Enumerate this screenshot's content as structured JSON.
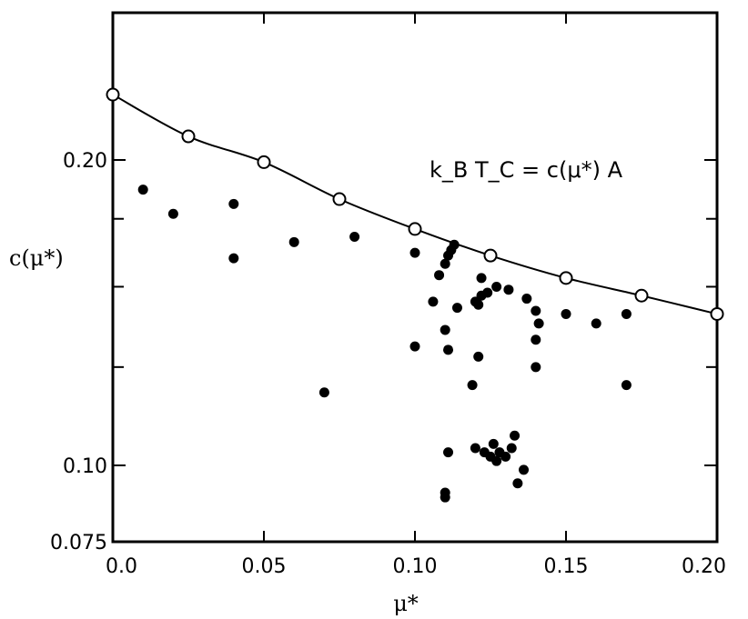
{
  "chart_data": {
    "type": "scatter",
    "title": "",
    "xlabel": "μ*",
    "ylabel": "c(μ*)",
    "xlim": [
      0.0,
      0.2
    ],
    "ylim": [
      0.075,
      0.23
    ],
    "y_scale": "log",
    "grid": false,
    "legend": "none",
    "annotation": "k_B T_C = c(μ*) A",
    "x_ticks": [
      {
        "value": 0.0,
        "label": "0.0"
      },
      {
        "value": 0.05,
        "label": "0.05"
      },
      {
        "value": 0.1,
        "label": "0.10"
      },
      {
        "value": 0.15,
        "label": "0.15"
      },
      {
        "value": 0.2,
        "label": "0.20"
      }
    ],
    "y_ticks": [
      {
        "value": 0.075,
        "label": "0.075"
      },
      {
        "value": 0.1,
        "label": "0.10"
      },
      {
        "value": 0.2,
        "label": "0.20"
      }
    ],
    "y_minor_ticks": [
      0.125,
      0.15,
      0.175
    ],
    "series": [
      {
        "marker": "open-circle",
        "line": "smooth",
        "points": [
          [
            0.0,
            0.232
          ],
          [
            0.025,
            0.211
          ],
          [
            0.05,
            0.199
          ],
          [
            0.075,
            0.183
          ],
          [
            0.1,
            0.171
          ],
          [
            0.125,
            0.161
          ],
          [
            0.15,
            0.153
          ],
          [
            0.175,
            0.147
          ],
          [
            0.2,
            0.141
          ]
        ]
      },
      {
        "marker": "filled-circle",
        "line": "none",
        "points": [
          [
            0.01,
            0.187
          ],
          [
            0.02,
            0.177
          ],
          [
            0.04,
            0.181
          ],
          [
            0.04,
            0.16
          ],
          [
            0.06,
            0.166
          ],
          [
            0.08,
            0.168
          ],
          [
            0.07,
            0.118
          ],
          [
            0.1,
            0.162
          ],
          [
            0.1,
            0.131
          ],
          [
            0.106,
            0.145
          ],
          [
            0.108,
            0.154
          ],
          [
            0.11,
            0.158
          ],
          [
            0.111,
            0.161
          ],
          [
            0.112,
            0.163
          ],
          [
            0.113,
            0.165
          ],
          [
            0.11,
            0.136
          ],
          [
            0.111,
            0.13
          ],
          [
            0.114,
            0.143
          ],
          [
            0.111,
            0.103
          ],
          [
            0.11,
            0.094
          ],
          [
            0.11,
            0.093
          ],
          [
            0.12,
            0.145
          ],
          [
            0.121,
            0.144
          ],
          [
            0.122,
            0.147
          ],
          [
            0.122,
            0.153
          ],
          [
            0.124,
            0.148
          ],
          [
            0.127,
            0.15
          ],
          [
            0.121,
            0.128
          ],
          [
            0.119,
            0.12
          ],
          [
            0.12,
            0.104
          ],
          [
            0.123,
            0.103
          ],
          [
            0.125,
            0.102
          ],
          [
            0.127,
            0.101
          ],
          [
            0.128,
            0.103
          ],
          [
            0.126,
            0.105
          ],
          [
            0.13,
            0.102
          ],
          [
            0.132,
            0.104
          ],
          [
            0.133,
            0.107
          ],
          [
            0.134,
            0.096
          ],
          [
            0.136,
            0.099
          ],
          [
            0.131,
            0.149
          ],
          [
            0.137,
            0.146
          ],
          [
            0.14,
            0.142
          ],
          [
            0.141,
            0.138
          ],
          [
            0.14,
            0.133
          ],
          [
            0.14,
            0.125
          ],
          [
            0.15,
            0.141
          ],
          [
            0.16,
            0.138
          ],
          [
            0.17,
            0.141
          ],
          [
            0.17,
            0.12
          ]
        ]
      }
    ]
  }
}
